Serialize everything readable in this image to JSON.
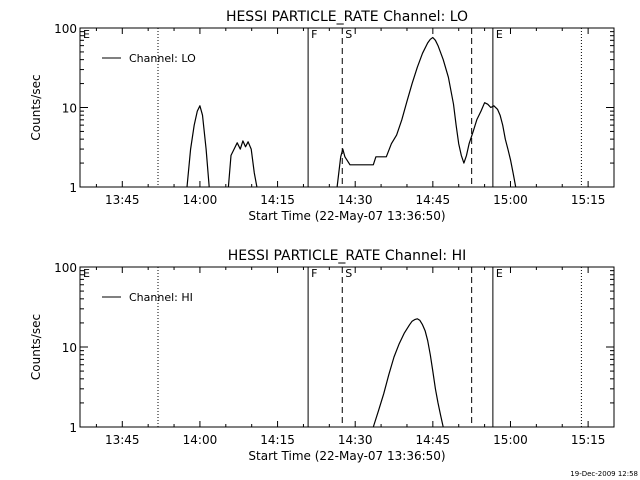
{
  "footer_timestamp": "19-Dec-2009 12:58",
  "chart_data": [
    {
      "type": "line",
      "title": "HESSI PARTICLE_RATE Channel: LO",
      "xlabel": "Start Time (22-May-07 13:36:50)",
      "ylabel": "Counts/sec",
      "yscale": "log",
      "ylim": [
        1,
        100
      ],
      "xlim_minutes": [
        36.83,
        140.0
      ],
      "x_tick_labels": [
        "13:45",
        "14:00",
        "14:15",
        "14:30",
        "14:45",
        "15:00",
        "15:15"
      ],
      "x_tick_minutes": [
        45,
        60,
        75,
        90,
        105,
        120,
        135
      ],
      "y_tick_labels": [
        "1",
        "10",
        "100"
      ],
      "y_tick_values": [
        1,
        10,
        100
      ],
      "legend": {
        "label": "Channel: LO",
        "placement": "top-left"
      },
      "line_color": "#000000",
      "markers": [
        {
          "label": "E",
          "time_minutes": 36.83,
          "style": "dotted",
          "show_line": false
        },
        {
          "label": "",
          "time_minutes": 51.9,
          "style": "dotted",
          "show_line": true
        },
        {
          "label": "F",
          "time_minutes": 80.9,
          "style": "solid",
          "show_line": true
        },
        {
          "label": "S",
          "time_minutes": 87.5,
          "style": "dashed",
          "show_line": true
        },
        {
          "label": "",
          "time_minutes": 112.5,
          "style": "dashed",
          "show_line": true
        },
        {
          "label": "E",
          "time_minutes": 116.6,
          "style": "solid",
          "show_line": true
        },
        {
          "label": "",
          "time_minutes": 133.7,
          "style": "dotted",
          "show_line": true
        }
      ],
      "series": [
        {
          "name": "Channel: LO",
          "segments": [
            [
              [
                57.5,
                1
              ],
              [
                58.2,
                3
              ],
              [
                58.9,
                6
              ],
              [
                59.5,
                9
              ],
              [
                60.0,
                10.5
              ],
              [
                60.5,
                8
              ],
              [
                61.2,
                3
              ],
              [
                61.8,
                1
              ]
            ],
            [
              [
                65.5,
                1
              ],
              [
                66.0,
                2.5
              ],
              [
                66.6,
                3
              ],
              [
                67.2,
                3.6
              ],
              [
                67.8,
                3
              ],
              [
                68.3,
                3.8
              ],
              [
                68.8,
                3.2
              ],
              [
                69.3,
                3.7
              ],
              [
                69.9,
                3
              ],
              [
                70.5,
                1.5
              ],
              [
                71.0,
                1
              ]
            ],
            [
              [
                86.5,
                1
              ],
              [
                87.2,
                2.4
              ],
              [
                87.6,
                3
              ],
              [
                88.0,
                2.4
              ],
              [
                89.0,
                1.9
              ],
              [
                91.0,
                1.9
              ],
              [
                92.0,
                1.9
              ],
              [
                93.5,
                1.9
              ],
              [
                94.0,
                2.4
              ],
              [
                96.0,
                2.4
              ],
              [
                97.0,
                3.5
              ],
              [
                98.0,
                4.5
              ],
              [
                99.0,
                7
              ],
              [
                100.0,
                12
              ],
              [
                101.0,
                20
              ],
              [
                102.0,
                32
              ],
              [
                103.0,
                48
              ],
              [
                104.0,
                65
              ],
              [
                104.5,
                72
              ],
              [
                105.0,
                76
              ],
              [
                105.5,
                70
              ],
              [
                106.0,
                60
              ],
              [
                107.0,
                40
              ],
              [
                108.0,
                24
              ],
              [
                109.0,
                11
              ],
              [
                109.5,
                6
              ],
              [
                110.0,
                3.5
              ],
              [
                110.5,
                2.5
              ],
              [
                111.0,
                2.0
              ],
              [
                111.5,
                2.5
              ],
              [
                112.0,
                3.5
              ],
              [
                112.8,
                5
              ],
              [
                113.5,
                7
              ],
              [
                114.3,
                9
              ],
              [
                115.0,
                11.5
              ],
              [
                115.6,
                11
              ],
              [
                116.2,
                10
              ],
              [
                116.8,
                10.5
              ],
              [
                117.5,
                9.5
              ],
              [
                118.0,
                8
              ],
              [
                118.5,
                6
              ],
              [
                119.0,
                4
              ],
              [
                119.5,
                3
              ],
              [
                120.0,
                2.2
              ],
              [
                120.5,
                1.5
              ],
              [
                121.0,
                1
              ]
            ]
          ]
        }
      ]
    },
    {
      "type": "line",
      "title": "HESSI PARTICLE_RATE Channel: HI",
      "xlabel": "Start Time (22-May-07 13:36:50)",
      "ylabel": "Counts/sec",
      "yscale": "log",
      "ylim": [
        1,
        100
      ],
      "xlim_minutes": [
        36.83,
        140.0
      ],
      "x_tick_labels": [
        "13:45",
        "14:00",
        "14:15",
        "14:30",
        "14:45",
        "15:00",
        "15:15"
      ],
      "x_tick_minutes": [
        45,
        60,
        75,
        90,
        105,
        120,
        135
      ],
      "y_tick_labels": [
        "1",
        "10",
        "100"
      ],
      "y_tick_values": [
        1,
        10,
        100
      ],
      "legend": {
        "label": "Channel: HI",
        "placement": "top-left"
      },
      "line_color": "#000000",
      "markers": [
        {
          "label": "E",
          "time_minutes": 36.83,
          "style": "dotted",
          "show_line": false
        },
        {
          "label": "",
          "time_minutes": 51.9,
          "style": "dotted",
          "show_line": true
        },
        {
          "label": "F",
          "time_minutes": 80.9,
          "style": "solid",
          "show_line": true
        },
        {
          "label": "S",
          "time_minutes": 87.5,
          "style": "dashed",
          "show_line": true
        },
        {
          "label": "",
          "time_minutes": 112.5,
          "style": "dashed",
          "show_line": true
        },
        {
          "label": "E",
          "time_minutes": 116.6,
          "style": "solid",
          "show_line": true
        },
        {
          "label": "",
          "time_minutes": 133.7,
          "style": "dotted",
          "show_line": true
        }
      ],
      "series": [
        {
          "name": "Channel: HI",
          "segments": [
            [
              [
                93.5,
                1
              ],
              [
                94.5,
                1.6
              ],
              [
                95.5,
                2.6
              ],
              [
                96.5,
                4.5
              ],
              [
                97.5,
                7.5
              ],
              [
                98.5,
                11
              ],
              [
                99.5,
                15
              ],
              [
                100.5,
                19
              ],
              [
                101.0,
                21
              ],
              [
                101.5,
                22
              ],
              [
                102.0,
                22.5
              ],
              [
                102.5,
                21.5
              ],
              [
                103.0,
                19
              ],
              [
                103.5,
                16
              ],
              [
                104.0,
                12
              ],
              [
                104.5,
                8
              ],
              [
                105.0,
                5
              ],
              [
                105.5,
                3
              ],
              [
                106.0,
                2
              ],
              [
                106.5,
                1.4
              ],
              [
                107.0,
                1
              ]
            ]
          ]
        }
      ]
    }
  ]
}
